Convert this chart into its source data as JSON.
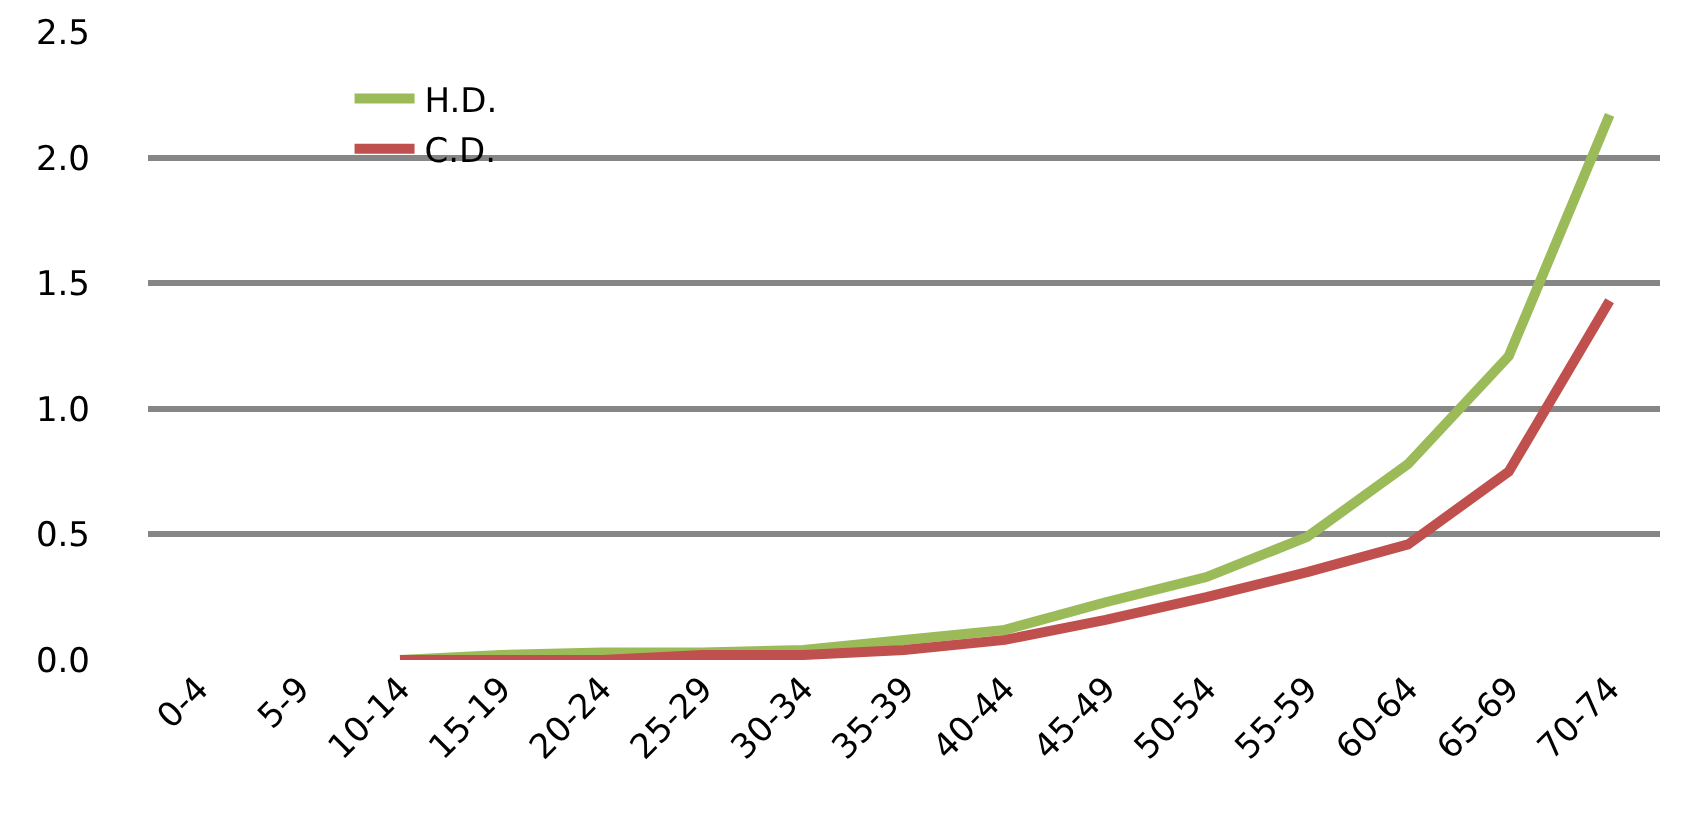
{
  "chart_data": {
    "type": "line",
    "categories": [
      "0-4",
      "5-9",
      "10-14",
      "15-19",
      "20-24",
      "25-29",
      "30-34",
      "35-39",
      "40-44",
      "45-49",
      "50-54",
      "55-59",
      "60-64",
      "65-69",
      "70-74"
    ],
    "series": [
      {
        "name": "H.D.",
        "color": "#9bbb59",
        "values": [
          null,
          null,
          0,
          0.02,
          0.03,
          0.03,
          0.04,
          0.08,
          0.12,
          0.23,
          0.33,
          0.49,
          0.78,
          1.21,
          2.17
        ]
      },
      {
        "name": "C.D.",
        "color": "#c0504d",
        "values": [
          null,
          null,
          0,
          0,
          0,
          0.02,
          0.02,
          0.04,
          0.08,
          0.16,
          0.25,
          0.35,
          0.46,
          0.75,
          1.43
        ]
      }
    ],
    "ylim": [
      0,
      2.5
    ],
    "yticks": [
      {
        "value": 0,
        "label": "0.0"
      },
      {
        "value": 0.5,
        "label": "0.5"
      },
      {
        "value": 1,
        "label": "1.0"
      },
      {
        "value": 1.5,
        "label": "1.5"
      },
      {
        "value": 2,
        "label": "2.0"
      },
      {
        "value": 2.5,
        "label": "2.5"
      }
    ],
    "grid": "y",
    "legend": "top left",
    "marker": "none",
    "line_style": "solid"
  }
}
